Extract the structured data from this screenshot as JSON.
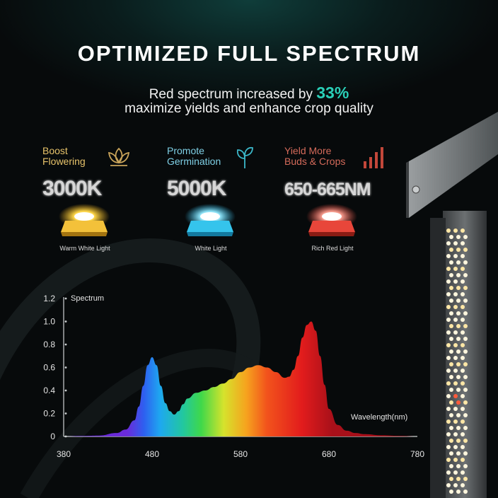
{
  "header": {
    "title": "OPTIMIZED FULL SPECTRUM",
    "subtitle_pre": "Red spectrum increased by ",
    "subtitle_pct": "33%",
    "subtitle_line2": "maximize yields and enhance crop quality"
  },
  "features": [
    {
      "label_line1": "Boost",
      "label_line2": "Flowering",
      "value": "3000K",
      "caption": "Warm White Light",
      "icon": "flower-icon",
      "color": "#f3c13a"
    },
    {
      "label_line1": "Promote",
      "label_line2": "Germination",
      "value": "5000K",
      "caption": "White Light",
      "icon": "sprout-icon",
      "color": "#29b7e6"
    },
    {
      "label_line1": "Yield More",
      "label_line2": "Buds & Crops",
      "value": "650-665NM",
      "caption": "Rich Red Light",
      "icon": "bars-icon",
      "color": "#e8463a"
    }
  ],
  "chart_data": {
    "type": "area",
    "ylabel": "Spectrum",
    "xlabel": "Wavelength(nm)",
    "xlim": [
      380,
      780
    ],
    "ylim": [
      0,
      1.2
    ],
    "x_ticks": [
      380,
      480,
      580,
      680,
      780
    ],
    "y_ticks": [
      0,
      0.2,
      0.4,
      0.6,
      0.8,
      1.0,
      1.2
    ],
    "x_tick_labels": [
      "380",
      "480",
      "580",
      "680",
      "780"
    ],
    "y_tick_labels": [
      "0",
      "0.2",
      "0.4",
      "0.6",
      "0.8",
      "1.0",
      "1.2"
    ],
    "series": [
      {
        "x": [
          380,
          400,
          420,
          440,
          450,
          460,
          465,
          470,
          475,
          480,
          485,
          490,
          495,
          500,
          505,
          510,
          515,
          520,
          530,
          540,
          550,
          560,
          570,
          580,
          590,
          600,
          610,
          620,
          630,
          635,
          640,
          645,
          650,
          655,
          660,
          665,
          670,
          675,
          680,
          690,
          700,
          710,
          720,
          740,
          760,
          780
        ],
        "values": [
          0,
          0.004,
          0.008,
          0.03,
          0.06,
          0.14,
          0.26,
          0.44,
          0.62,
          0.69,
          0.62,
          0.44,
          0.29,
          0.22,
          0.19,
          0.22,
          0.28,
          0.33,
          0.38,
          0.4,
          0.43,
          0.46,
          0.5,
          0.56,
          0.6,
          0.62,
          0.6,
          0.56,
          0.51,
          0.52,
          0.58,
          0.7,
          0.86,
          0.97,
          1.0,
          0.92,
          0.7,
          0.45,
          0.24,
          0.1,
          0.05,
          0.03,
          0.02,
          0.01,
          0.005,
          0
        ]
      }
    ]
  }
}
